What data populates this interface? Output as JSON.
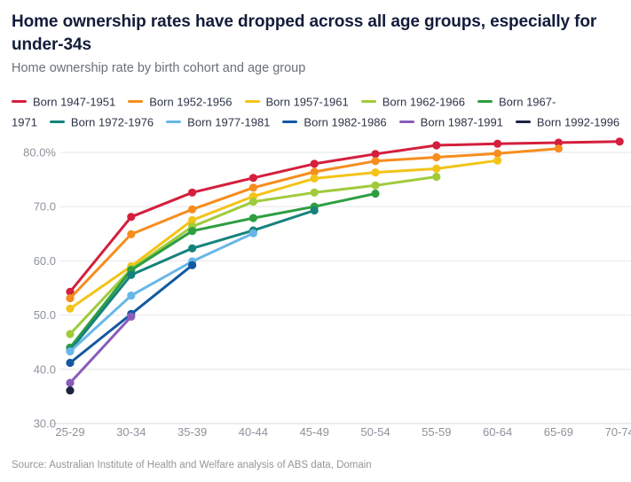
{
  "header": {
    "title": "Home ownership rates have dropped across all age groups, especially for under-34s",
    "subtitle": "Home ownership rate by birth cohort and age group"
  },
  "legend": {
    "rows": [
      [
        {
          "swatch": "#d41f3d",
          "label": "Born 1947-1951"
        },
        {
          "swatch": "#f68d1e",
          "label": "Born 1952-1956"
        },
        {
          "swatch": "#f3c317",
          "label": "Born 1957-1961"
        },
        {
          "swatch": "#9fcb3b",
          "label": "Born 1962-1966"
        },
        {
          "swatch": "#2e9e41",
          "label": "Born 1967-"
        }
      ],
      [
        {
          "swatch": null,
          "label": "1971"
        },
        {
          "swatch": "#15837b",
          "label": "Born 1972-1976"
        },
        {
          "swatch": "#67b7e7",
          "label": "Born 1977-1981"
        },
        {
          "swatch": "#1459a0",
          "label": "Born 1982-1986"
        },
        {
          "swatch": "#8a5cb8",
          "label": "Born 1987-1991"
        },
        {
          "swatch": "#1b2440",
          "label": "Born 1992-1996"
        }
      ]
    ]
  },
  "chart_data": {
    "type": "line",
    "categories": [
      "25-29",
      "30-34",
      "35-39",
      "40-44",
      "45-49",
      "50-54",
      "55-59",
      "60-64",
      "65-69",
      "70-74"
    ],
    "series": [
      {
        "name": "Born 1947-1951",
        "color": "#d41f3d",
        "values": [
          54.3,
          68.1,
          72.6,
          75.3,
          77.9,
          79.7,
          81.3,
          81.6,
          81.8,
          82.0
        ]
      },
      {
        "name": "Born 1952-1956",
        "color": "#f68d1e",
        "values": [
          53.1,
          64.9,
          69.5,
          73.5,
          76.4,
          78.4,
          79.1,
          79.8,
          80.7,
          null
        ]
      },
      {
        "name": "Born 1957-1961",
        "color": "#f3c317",
        "values": [
          51.2,
          59.0,
          67.5,
          71.9,
          75.2,
          76.3,
          77.0,
          78.5,
          null,
          null
        ]
      },
      {
        "name": "Born 1962-1966",
        "color": "#9fcb3b",
        "values": [
          46.5,
          58.5,
          66.3,
          70.9,
          72.6,
          73.9,
          75.5,
          null,
          null,
          null
        ]
      },
      {
        "name": "Born 1967-1971",
        "color": "#2e9e41",
        "values": [
          44.0,
          58.3,
          65.5,
          67.9,
          70.0,
          72.4,
          null,
          null,
          null,
          null
        ]
      },
      {
        "name": "Born 1972-1976",
        "color": "#15837b",
        "values": [
          43.5,
          57.4,
          62.3,
          65.6,
          69.3,
          null,
          null,
          null,
          null,
          null
        ]
      },
      {
        "name": "Born 1977-1981",
        "color": "#67b7e7",
        "values": [
          43.3,
          53.6,
          59.9,
          65.1,
          null,
          null,
          null,
          null,
          null,
          null
        ]
      },
      {
        "name": "Born 1982-1986",
        "color": "#1459a0",
        "values": [
          41.2,
          50.2,
          59.2,
          null,
          null,
          null,
          null,
          null,
          null,
          null
        ]
      },
      {
        "name": "Born 1987-1991",
        "color": "#8a5cb8",
        "values": [
          37.5,
          49.7,
          null,
          null,
          null,
          null,
          null,
          null,
          null,
          null
        ]
      },
      {
        "name": "Born 1992-1996",
        "color": "#1b2440",
        "values": [
          36.1,
          null,
          null,
          null,
          null,
          null,
          null,
          null,
          null,
          null
        ]
      }
    ],
    "y_ticks": [
      {
        "value": 30,
        "label": "30.0"
      },
      {
        "value": 40,
        "label": "40.0"
      },
      {
        "value": 50,
        "label": "50.0"
      },
      {
        "value": 60,
        "label": "60.0"
      },
      {
        "value": 70,
        "label": "70.0"
      },
      {
        "value": 80,
        "label": "80.0%"
      }
    ],
    "ylim": [
      30,
      84
    ],
    "xlabel": "",
    "ylabel": "",
    "grid": true,
    "legend_position": "top"
  },
  "footer": {
    "source": "Source: Australian Institute of Health and Welfare analysis of ABS data, Domain"
  },
  "colors": {
    "background": "#ffffff",
    "gridline": "#e6e6e6",
    "axis_line": "#d9d9d9",
    "axis_label": "#8d939b",
    "title": "#131c3a",
    "subtitle": "#697077",
    "source": "#92979c"
  }
}
